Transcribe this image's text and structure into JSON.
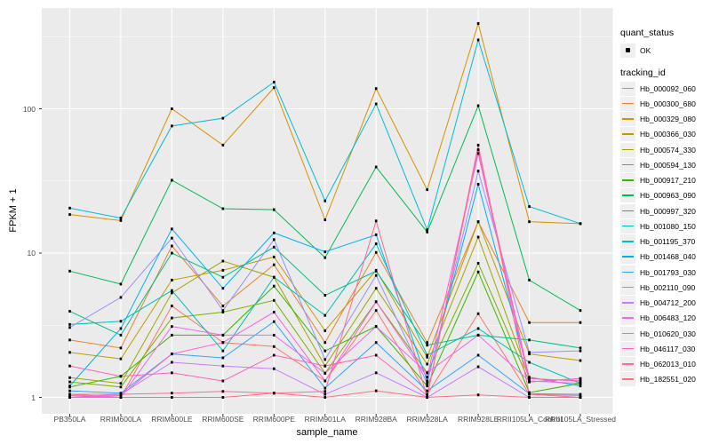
{
  "chart_data": {
    "type": "line",
    "title": "",
    "xlabel": "sample_name",
    "ylabel": "FPKM + 1",
    "y_scale": "log10",
    "y_ticks": [
      1,
      10,
      100
    ],
    "y_tick_labels": [
      "1",
      "10",
      "100"
    ],
    "y_minor_ticks": [
      3.1623,
      31.623,
      316.23
    ],
    "ylim": [
      0.77,
      520
    ],
    "grid": "white major+minor gridlines on gray panel",
    "legend_position": "right",
    "marker": "small black square on every point",
    "categories": [
      "PB350LA",
      "RRIM600LA",
      "RRIM600LE",
      "RRIM600SE",
      "RRIM600PE",
      "RRIM901LA",
      "RRIM928BA",
      "RRIM928LA",
      "RRIM928LE",
      "RRII105LA_Control",
      "RRII105LA_Stressed"
    ],
    "series": [
      {
        "name": "Hb_000092_060",
        "color": "#F8766D",
        "values": [
          1.05,
          1.0,
          4.3,
          2.4,
          2.25,
          1.3,
          4.0,
          1.05,
          3.8,
          1.05,
          1.03
        ]
      },
      {
        "name": "Hb_000300_680",
        "color": "#EA8331",
        "values": [
          2.5,
          2.2,
          11.2,
          4.3,
          8.3,
          2.4,
          10.1,
          2.4,
          16.5,
          3.3,
          3.3
        ]
      },
      {
        "name": "Hb_000329_080",
        "color": "#D89000",
        "values": [
          18.5,
          16.8,
          100,
          56,
          140,
          17,
          138,
          27.5,
          390,
          16.5,
          16
        ]
      },
      {
        "name": "Hb_000366_030",
        "color": "#C09B00",
        "values": [
          2.05,
          1.85,
          6.5,
          7.6,
          9.4,
          2.9,
          7.6,
          1.9,
          16.5,
          2.0,
          1.8
        ]
      },
      {
        "name": "Hb_000574_330",
        "color": "#A3A500",
        "values": [
          1.37,
          1.25,
          5.3,
          8.8,
          6.8,
          1.65,
          5.7,
          1.7,
          12.9,
          1.35,
          1.3
        ]
      },
      {
        "name": "Hb_000594_130",
        "color": "#7CAE00",
        "values": [
          1.28,
          1.18,
          3.55,
          3.9,
          4.7,
          1.47,
          4.6,
          1.48,
          8.5,
          1.28,
          1.35
        ]
      },
      {
        "name": "Hb_000917_210",
        "color": "#39B600",
        "values": [
          1.18,
          1.4,
          2.7,
          2.7,
          5.9,
          2.1,
          3.1,
          1.2,
          7.4,
          1.08,
          1.25
        ]
      },
      {
        "name": "Hb_000963_090",
        "color": "#00BB4E",
        "values": [
          7.5,
          6.1,
          32,
          20.3,
          20,
          9.3,
          39.5,
          14,
          105,
          6.5,
          4.0
        ]
      },
      {
        "name": "Hb_000997_320",
        "color": "#00C087",
        "values": [
          3.95,
          2.7,
          10,
          6.8,
          11,
          5.1,
          7.5,
          2.3,
          2.7,
          2.5,
          2.2
        ]
      },
      {
        "name": "Hb_001080_150",
        "color": "#00C0B8",
        "values": [
          3.2,
          3.37,
          5.5,
          2.1,
          6.8,
          3.7,
          11.6,
          1.96,
          3.0,
          1.75,
          1.25
        ]
      },
      {
        "name": "Hb_001195_370",
        "color": "#00BCD8",
        "values": [
          20.5,
          17.5,
          76,
          86,
          153,
          23,
          108,
          14.5,
          300,
          21,
          16
        ]
      },
      {
        "name": "Hb_001468_040",
        "color": "#00B0F6",
        "values": [
          1.2,
          3.0,
          14.7,
          5.7,
          13.8,
          10.2,
          13.4,
          1.3,
          30,
          1.38,
          1.2
        ]
      },
      {
        "name": "Hb_001793_030",
        "color": "#35A2FF",
        "values": [
          1.11,
          1.07,
          2.0,
          1.88,
          3.35,
          1.16,
          2.4,
          1.11,
          1.96,
          1.06,
          1.05
        ]
      },
      {
        "name": "Hb_002110_090",
        "color": "#9590FF",
        "values": [
          3.05,
          4.93,
          12.7,
          4.0,
          12.4,
          1.83,
          7.0,
          1.25,
          37,
          2.05,
          2.1
        ]
      },
      {
        "name": "Hb_004712_200",
        "color": "#C77CFF",
        "values": [
          1.0,
          1.05,
          1.75,
          1.65,
          1.58,
          1.05,
          1.48,
          1.0,
          1.63,
          1.0,
          1.0
        ]
      },
      {
        "name": "Hb_006483_120",
        "color": "#E76BF3",
        "values": [
          1.03,
          1.0,
          3.1,
          2.7,
          2.7,
          1.47,
          3.1,
          1.48,
          2.7,
          1.3,
          1.25
        ]
      },
      {
        "name": "Hb_010620_030",
        "color": "#FA62DB",
        "values": [
          1.0,
          1.03,
          2.0,
          2.4,
          3.9,
          1.3,
          4.6,
          1.38,
          49,
          1.28,
          1.35
        ]
      },
      {
        "name": "Hb_046117_030",
        "color": "#FF62BC",
        "values": [
          1.65,
          1.4,
          1.48,
          1.3,
          1.96,
          1.65,
          1.96,
          1.03,
          52,
          1.35,
          1.3
        ]
      },
      {
        "name": "Hb_062013_010",
        "color": "#FF6A98",
        "values": [
          1.05,
          1.05,
          1.07,
          1.1,
          1.07,
          1.1,
          16.7,
          1.0,
          56,
          1.05,
          1.0
        ]
      },
      {
        "name": "Hb_182551_020",
        "color": "#FC717F",
        "values": [
          1.0,
          1.0,
          1.0,
          1.0,
          1.07,
          1.0,
          1.11,
          1.0,
          1.04,
          1.0,
          1.0
        ]
      }
    ]
  },
  "legend": {
    "quant_status": {
      "title": "quant_status",
      "items": [
        {
          "label": "OK",
          "symbol": "black-point"
        }
      ]
    },
    "tracking_id": {
      "title": "tracking_id"
    }
  },
  "style": {
    "panel_bg": "#EBEBEB",
    "grid_color": "#FFFFFF",
    "tick_color": "#333333",
    "tick_label_color": "#4D4D4D",
    "marker_color": "#000000",
    "legend_key_bg": "#EFEFEF"
  }
}
